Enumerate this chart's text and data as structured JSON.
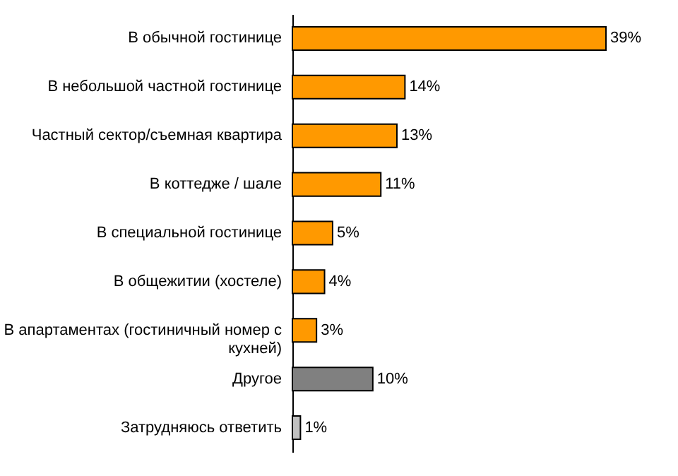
{
  "chart_data": {
    "type": "bar",
    "orientation": "horizontal",
    "categories": [
      "В обычной гостинице",
      "В небольшой частной гостинице",
      "Частный сектор/съемная квартира",
      "В коттедже / шале",
      "В специальной гостинице",
      "В общежитии (хостеле)",
      "В апартаментах (гостиничный номер с кухней)",
      "Другое",
      "Затрудняюсь ответить"
    ],
    "values": [
      39,
      14,
      13,
      11,
      5,
      4,
      3,
      10,
      1
    ],
    "colors": [
      "#ff9900",
      "#ff9900",
      "#ff9900",
      "#ff9900",
      "#ff9900",
      "#ff9900",
      "#ff9900",
      "#808080",
      "#c0c0c0"
    ],
    "value_labels": [
      "39%",
      "14%",
      "13%",
      "11%",
      "5%",
      "4%",
      "3%",
      "10%",
      "1%"
    ]
  }
}
